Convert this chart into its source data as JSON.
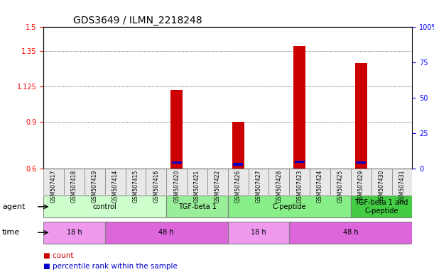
{
  "title": "GDS3649 / ILMN_2218248",
  "samples": [
    "GSM507417",
    "GSM507418",
    "GSM507419",
    "GSM507414",
    "GSM507415",
    "GSM507416",
    "GSM507420",
    "GSM507421",
    "GSM507422",
    "GSM507426",
    "GSM507427",
    "GSM507428",
    "GSM507423",
    "GSM507424",
    "GSM507425",
    "GSM507429",
    "GSM507430",
    "GSM507431"
  ],
  "bar_heights": [
    0.0,
    0.0,
    0.0,
    0.0,
    0.0,
    0.0,
    1.1,
    0.0,
    0.0,
    0.9,
    0.0,
    0.0,
    1.38,
    0.0,
    0.0,
    1.27,
    0.0,
    0.0
  ],
  "blue_heights": [
    0.0,
    0.0,
    0.0,
    0.0,
    0.0,
    0.0,
    0.63,
    0.0,
    0.0,
    0.62,
    0.0,
    0.0,
    0.635,
    0.0,
    0.0,
    0.632,
    0.0,
    0.0
  ],
  "ylim_left": [
    0.6,
    1.5
  ],
  "yticks_left": [
    0.6,
    0.9,
    1.125,
    1.35,
    1.5
  ],
  "ytick_labels_left": [
    "0.6",
    "0.9",
    "1.125",
    "1.35",
    "1.5"
  ],
  "ylim_right": [
    0,
    100
  ],
  "yticks_right": [
    0,
    25,
    50,
    75,
    100
  ],
  "ytick_labels_right": [
    "0",
    "25",
    "50",
    "75",
    "100%"
  ],
  "bar_color": "#cc0000",
  "blue_color": "#0000cc",
  "background_color": "#ffffff",
  "grid_color": "#000000",
  "agent_groups": [
    {
      "label": "control",
      "start": 0,
      "end": 5,
      "color": "#ccffcc"
    },
    {
      "label": "TGF-beta 1",
      "start": 6,
      "end": 8,
      "color": "#99ee99"
    },
    {
      "label": "C-peptide",
      "start": 9,
      "end": 14,
      "color": "#88ee88"
    },
    {
      "label": "TGF-beta 1 and\nC-peptide",
      "start": 15,
      "end": 17,
      "color": "#44cc44"
    }
  ],
  "time_groups": [
    {
      "label": "18 h",
      "start": 0,
      "end": 2,
      "color": "#ee99ee"
    },
    {
      "label": "48 h",
      "start": 3,
      "end": 8,
      "color": "#dd66dd"
    },
    {
      "label": "18 h",
      "start": 9,
      "end": 11,
      "color": "#ee99ee"
    },
    {
      "label": "48 h",
      "start": 12,
      "end": 17,
      "color": "#dd66dd"
    }
  ],
  "legend_items": [
    {
      "label": "count",
      "color": "#cc0000"
    },
    {
      "label": "percentile rank within the sample",
      "color": "#0000cc"
    }
  ]
}
